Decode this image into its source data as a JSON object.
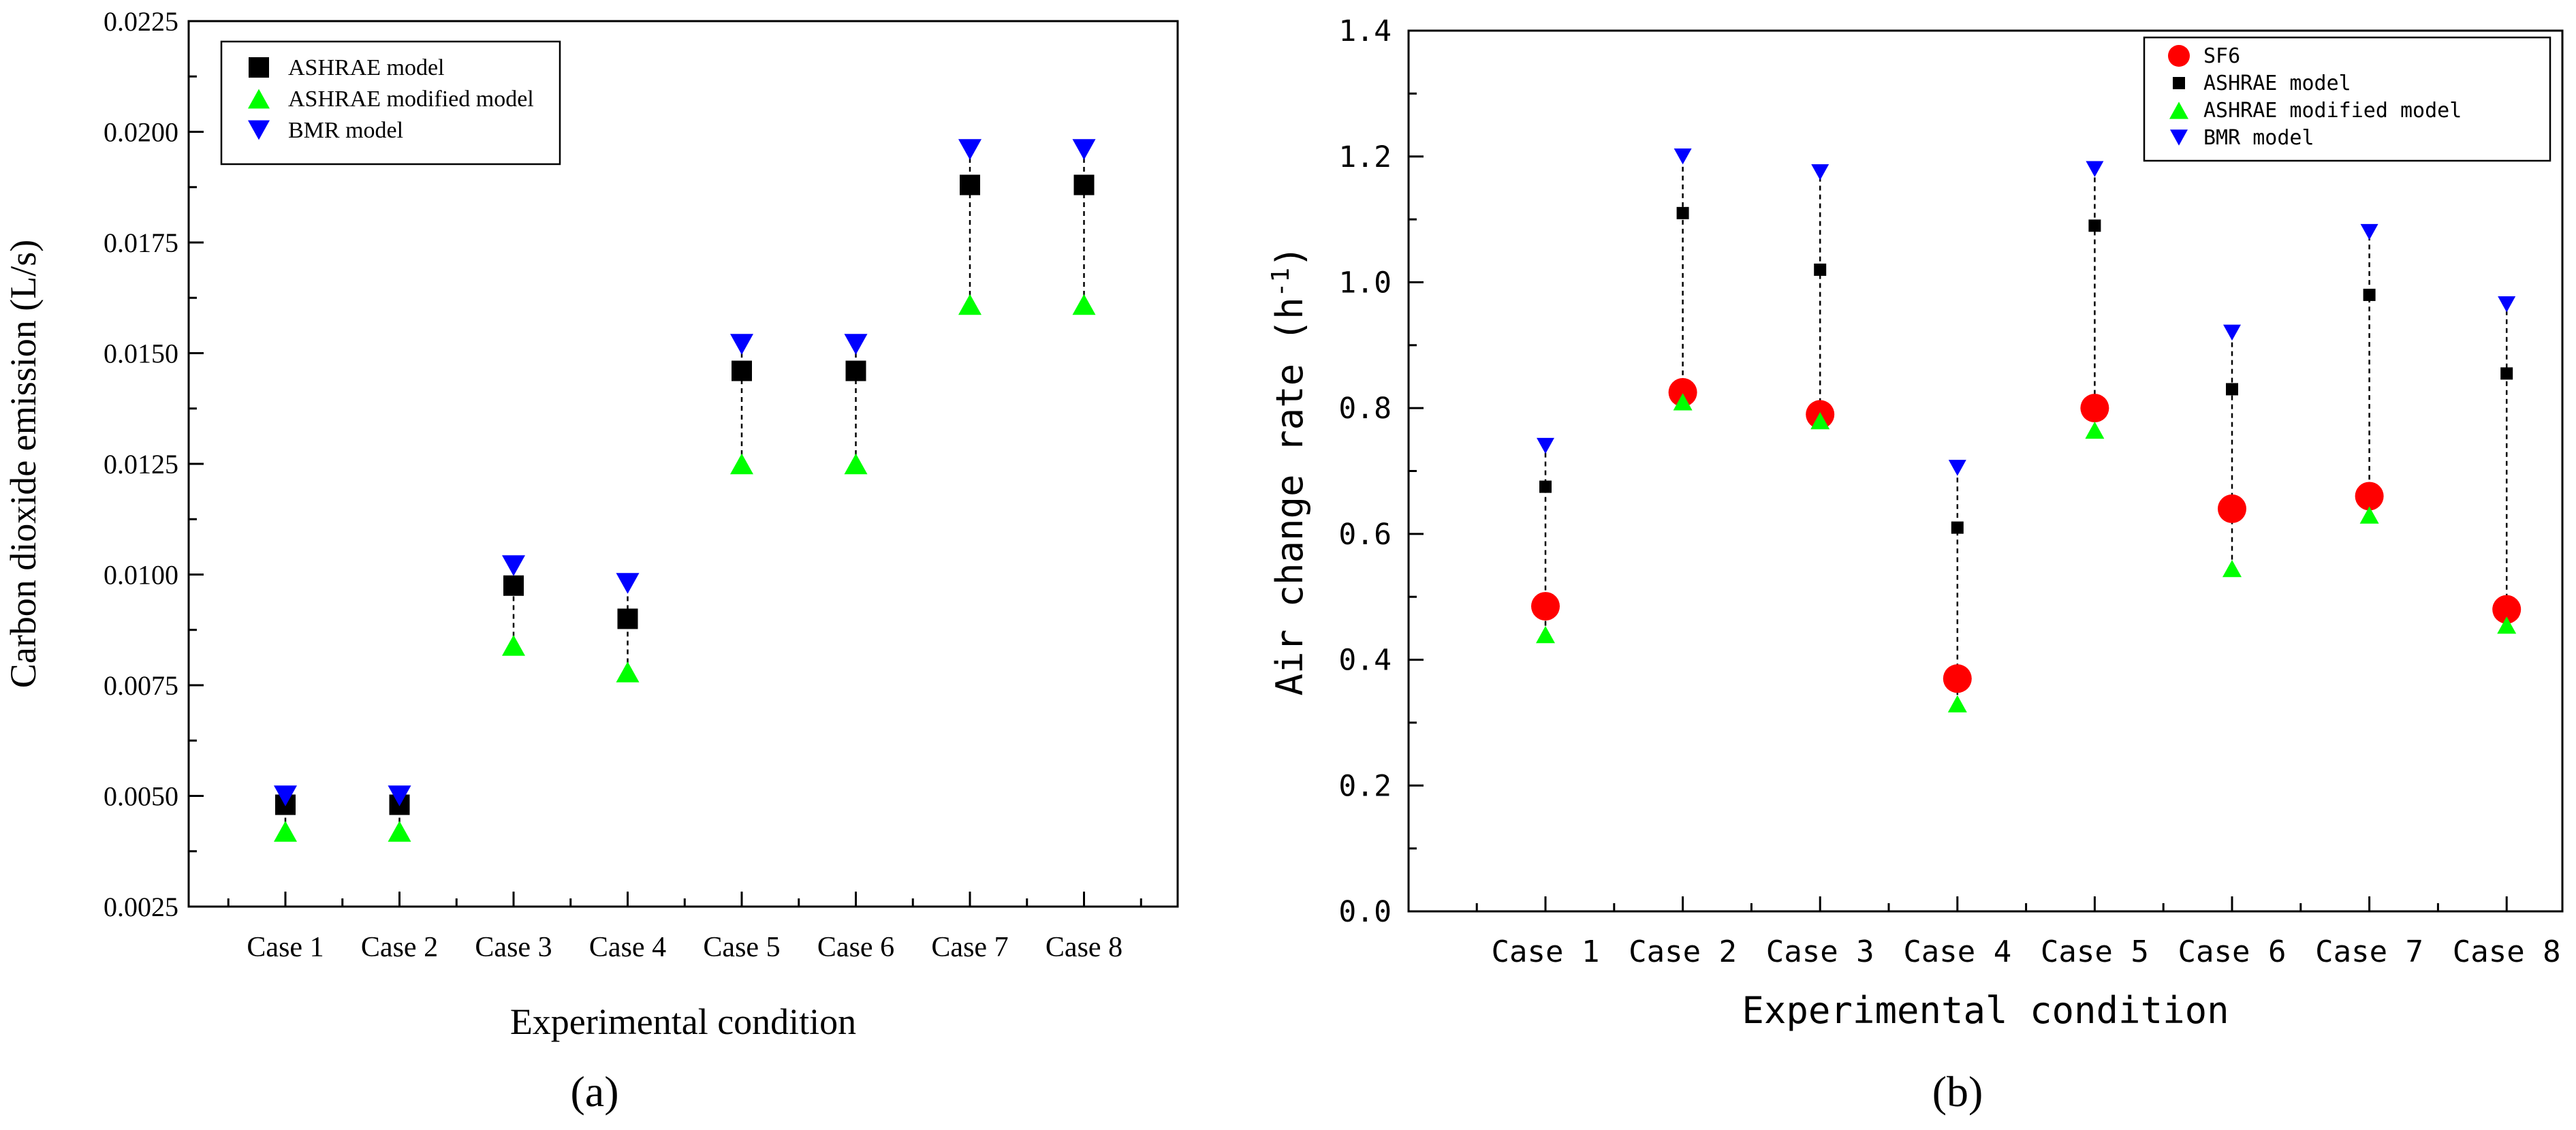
{
  "chart_data": [
    {
      "type": "scatter",
      "panel_label": "(a)",
      "title": "",
      "xlabel": "Experimental condition",
      "ylabel": "Carbon dioxide emission (L/s)",
      "categories": [
        "Case 1",
        "Case 2",
        "Case 3",
        "Case 4",
        "Case 5",
        "Case 6",
        "Case 7",
        "Case 8"
      ],
      "ylim": [
        0.0025,
        0.0225
      ],
      "yticks": [
        0.0025,
        0.005,
        0.0075,
        0.01,
        0.0125,
        0.015,
        0.0175,
        0.02,
        0.0225
      ],
      "ytick_labels": [
        "0.0025",
        "0.0050",
        "0.0075",
        "0.0100",
        "0.0125",
        "0.0150",
        "0.0175",
        "0.0200",
        "0.0225"
      ],
      "legend_position": "top-left",
      "series": [
        {
          "name": "ASHRAE model",
          "marker": "square",
          "color": "#000000",
          "values": [
            0.0048,
            0.0048,
            0.00975,
            0.009,
            0.0146,
            0.0146,
            0.0188,
            0.0188
          ]
        },
        {
          "name": "ASHRAE modified model",
          "marker": "triangle-up",
          "color": "#00ff00",
          "values": [
            0.0042,
            0.0042,
            0.0084,
            0.0078,
            0.0125,
            0.0125,
            0.0161,
            0.0161
          ]
        },
        {
          "name": "BMR model",
          "marker": "triangle-down",
          "color": "#0000ff",
          "values": [
            0.005,
            0.005,
            0.0102,
            0.0098,
            0.0152,
            0.0152,
            0.0196,
            0.0196
          ]
        }
      ]
    },
    {
      "type": "scatter",
      "panel_label": "(b)",
      "title": "",
      "xlabel": "Experimental condition",
      "ylabel_main": "Air change rate (h",
      "ylabel_sup": "-1",
      "ylabel_end": ")",
      "categories": [
        "Case 1",
        "Case 2",
        "Case 3",
        "Case 4",
        "Case 5",
        "Case 6",
        "Case 7",
        "Case 8"
      ],
      "ylim": [
        0.0,
        1.4
      ],
      "yticks": [
        0,
        0.2,
        0.4,
        0.6,
        0.8,
        1.0,
        1.2,
        1.4
      ],
      "ytick_labels": [
        "0.0",
        "0.2",
        "0.4",
        "0.6",
        "0.8",
        "1.0",
        "1.2",
        "1.4"
      ],
      "legend_position": "top-right",
      "series": [
        {
          "name": "SF6",
          "marker": "circle",
          "color": "#ff0000",
          "values": [
            0.485,
            0.825,
            0.79,
            0.37,
            0.8,
            0.64,
            0.66,
            0.48
          ]
        },
        {
          "name": "ASHRAE model",
          "marker": "square",
          "color": "#000000",
          "values": [
            0.675,
            1.11,
            1.02,
            0.61,
            1.09,
            0.83,
            0.98,
            0.855
          ]
        },
        {
          "name": "ASHRAE modified model",
          "marker": "triangle-up",
          "color": "#00ff00",
          "values": [
            0.44,
            0.81,
            0.78,
            0.33,
            0.765,
            0.545,
            0.63,
            0.455
          ]
        },
        {
          "name": "BMR model",
          "marker": "triangle-down",
          "color": "#0000ff",
          "values": [
            0.74,
            1.2,
            1.175,
            0.705,
            1.18,
            0.92,
            1.08,
            0.965
          ]
        }
      ]
    }
  ]
}
